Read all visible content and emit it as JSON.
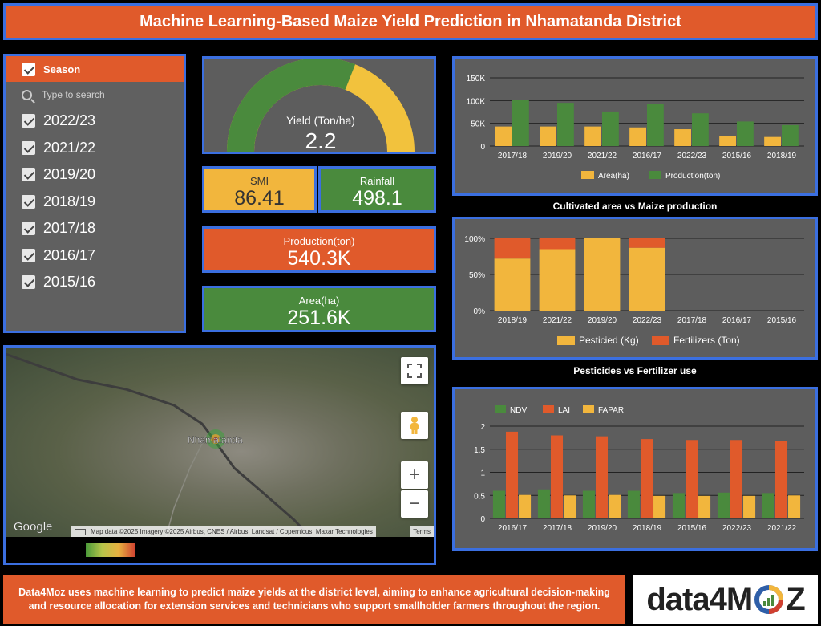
{
  "header": {
    "title": "Machine Learning-Based Maize Yield Prediction in Nhamatanda District"
  },
  "filter": {
    "label": "Season",
    "search_placeholder": "Type to search",
    "items": [
      "2022/23",
      "2021/22",
      "2019/20",
      "2018/19",
      "2017/18",
      "2016/17",
      "2015/16"
    ]
  },
  "gauge": {
    "label": "Yield (Ton/ha)",
    "value": "2.2",
    "fill_fraction": 0.62
  },
  "kpis": {
    "smi": {
      "label": "SMI",
      "value": "86.41"
    },
    "rainfall": {
      "label": "Rainfall",
      "value": "498.1"
    },
    "production": {
      "label": "Production(ton)",
      "value": "540.3K"
    },
    "area": {
      "label": "Area(ha)",
      "value": "251.6K"
    }
  },
  "map": {
    "place": "Nhamatanda",
    "brand": "Google",
    "attribution": "Map data ©2025 Imagery ©2025 Airbus, CNES / Airbus, Landsat / Copernicus, Maxar Technologies",
    "terms": "Terms",
    "zoom_in": "+",
    "zoom_out": "−"
  },
  "chart_data": [
    {
      "type": "bar",
      "title": "Cultivated area vs Maize production",
      "categories": [
        "2017/18",
        "2019/20",
        "2021/22",
        "2016/17",
        "2022/23",
        "2015/16",
        "2018/19"
      ],
      "series": [
        {
          "name": "Area(ha)",
          "color": "#f2b63d",
          "values": [
            43000,
            43000,
            43000,
            41000,
            37000,
            22000,
            20000
          ]
        },
        {
          "name": "Production(ton)",
          "color": "#4a8a3d",
          "values": [
            102000,
            95000,
            76000,
            93000,
            72000,
            54000,
            46000
          ]
        }
      ],
      "yticks": [
        "0",
        "50K",
        "100K",
        "150K"
      ],
      "ylim": [
        0,
        150000
      ],
      "legend": "bottom",
      "grid": true
    },
    {
      "type": "bar",
      "stacked": true,
      "normalized": true,
      "title": "Pesticides vs Fertilizer use",
      "categories": [
        "2018/19",
        "2021/22",
        "2019/20",
        "2022/23",
        "2017/18",
        "2016/17",
        "2015/16"
      ],
      "series": [
        {
          "name": "Pesticied (Kg)",
          "color": "#f2b63d",
          "values": [
            72,
            85,
            100,
            87,
            0,
            0,
            0
          ]
        },
        {
          "name": "Fertilizers (Ton)",
          "color": "#e05a2b",
          "values": [
            28,
            15,
            0,
            13,
            0,
            0,
            0
          ]
        }
      ],
      "yticks": [
        "0%",
        "50%",
        "100%"
      ],
      "ylim": [
        0,
        100
      ],
      "legend": "bottom",
      "grid": true
    },
    {
      "type": "bar",
      "title": "",
      "categories": [
        "2016/17",
        "2017/18",
        "2019/20",
        "2018/19",
        "2015/16",
        "2022/23",
        "2021/22"
      ],
      "series": [
        {
          "name": "NDVI",
          "color": "#4a8a3d",
          "values": [
            0.6,
            0.63,
            0.6,
            0.6,
            0.55,
            0.56,
            0.55
          ]
        },
        {
          "name": "LAI",
          "color": "#e05a2b",
          "values": [
            1.88,
            1.8,
            1.78,
            1.72,
            1.7,
            1.7,
            1.68
          ]
        },
        {
          "name": "FAPAR",
          "color": "#f2b63d",
          "values": [
            0.51,
            0.5,
            0.51,
            0.49,
            0.49,
            0.49,
            0.5
          ]
        }
      ],
      "yticks": [
        "0",
        "0.5",
        "1",
        "1.5",
        "2"
      ],
      "ylim": [
        0,
        2
      ],
      "legend": "top-left",
      "grid": true
    }
  ],
  "footer": {
    "text": "Data4Moz uses machine learning to predict maize yields at the district level, aiming to enhance agricultural decision-making and resource allocation for extension services and technicians who support smallholder farmers throughout the region."
  },
  "logo": {
    "text_left": "data4M",
    "text_right": "Z"
  }
}
